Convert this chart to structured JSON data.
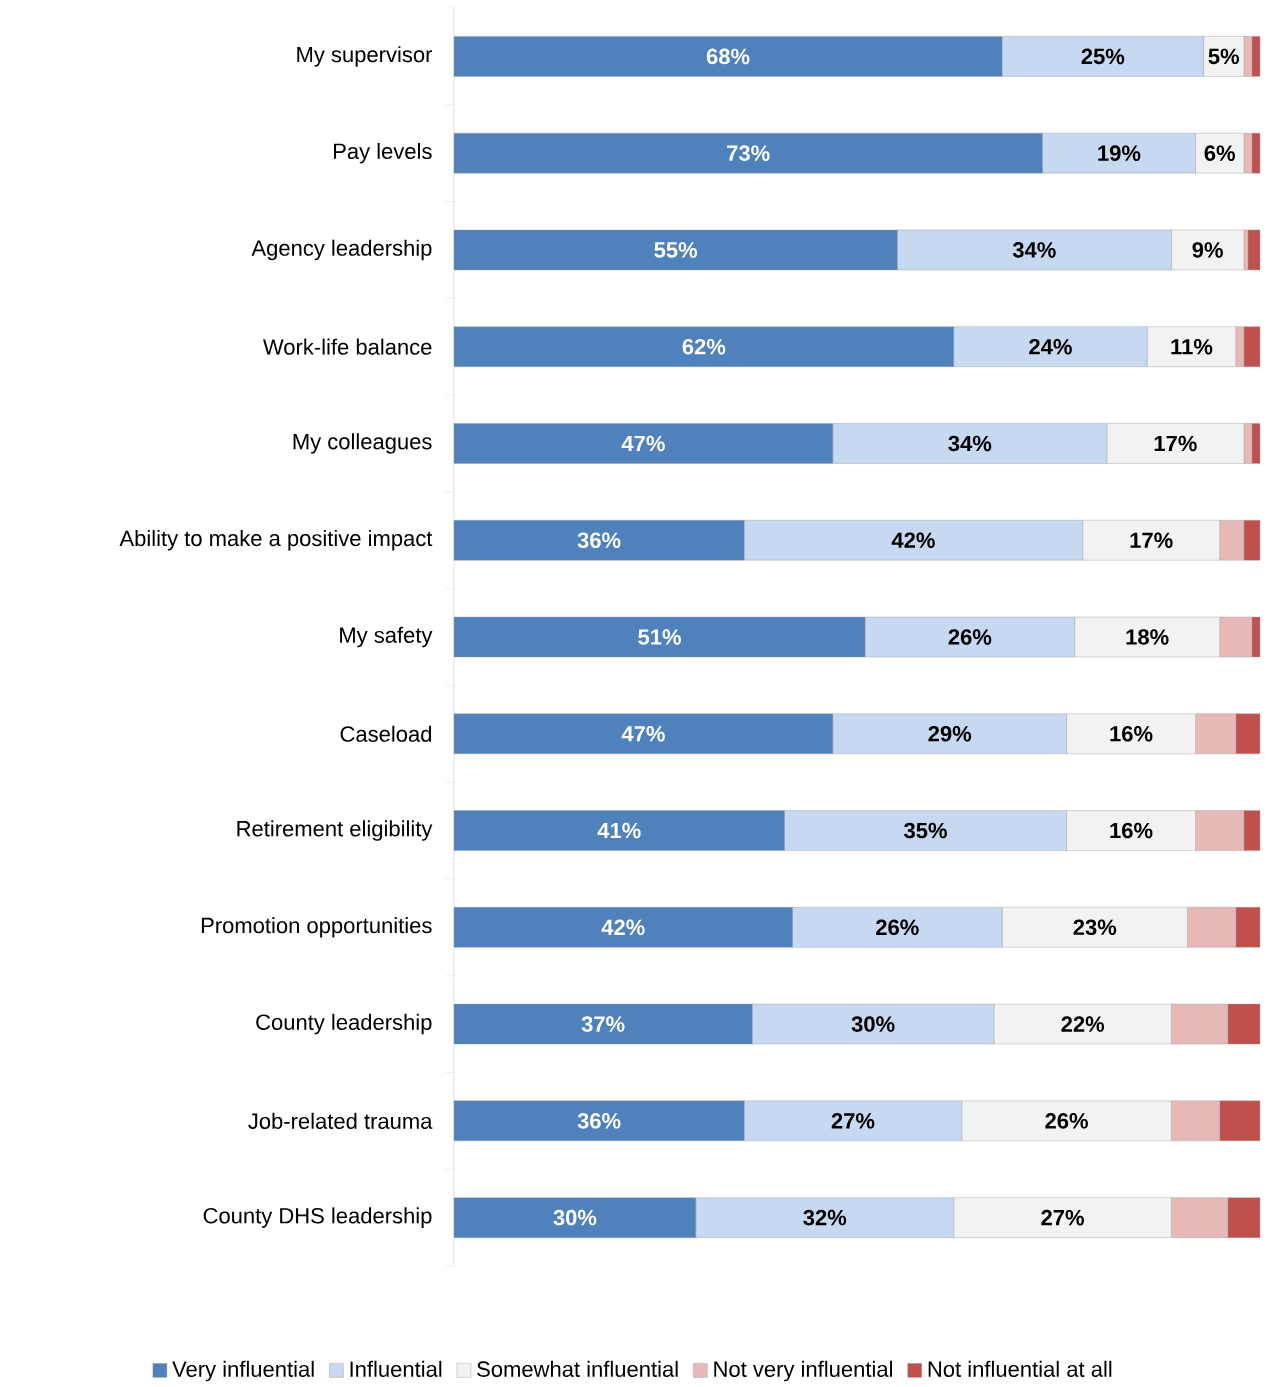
{
  "chart_data": {
    "type": "bar",
    "orientation": "horizontal",
    "stacked": true,
    "legend": "bottom",
    "xlim": [
      0,
      100
    ],
    "categories": [
      "My supervisor",
      "Pay levels",
      "Agency leadership",
      "Work-life balance",
      "My colleagues",
      "Ability to make a positive impact",
      "My safety",
      "Caseload",
      "Retirement eligibility",
      "Promotion opportunities",
      "County leadership",
      "Job-related trauma",
      "County DHS leadership"
    ],
    "series": [
      {
        "name": "Very influential",
        "color": "#4f81bd",
        "values": [
          68,
          73,
          55,
          62,
          47,
          36,
          51,
          47,
          41,
          42,
          37,
          36,
          30
        ],
        "value_labels": [
          "68%",
          "73%",
          "55%",
          "62%",
          "47%",
          "36%",
          "51%",
          "47%",
          "41%",
          "42%",
          "37%",
          "36%",
          "30%"
        ]
      },
      {
        "name": "Influential",
        "color": "#c6d9f1",
        "values": [
          25,
          19,
          34,
          24,
          34,
          42,
          26,
          29,
          35,
          26,
          30,
          27,
          32
        ],
        "value_labels": [
          "25%",
          "19%",
          "34%",
          "24%",
          "34%",
          "42%",
          "26%",
          "29%",
          "35%",
          "26%",
          "30%",
          "27%",
          "32%"
        ]
      },
      {
        "name": "Somewhat influential",
        "color": "#f2f2f2",
        "values": [
          5,
          6,
          9,
          11,
          17,
          17,
          18,
          16,
          16,
          23,
          22,
          26,
          27
        ],
        "value_labels": [
          "5%",
          "6%",
          "9%",
          "11%",
          "17%",
          "17%",
          "18%",
          "16%",
          "16%",
          "23%",
          "22%",
          "26%",
          "27%"
        ]
      },
      {
        "name": "Not very influential",
        "color": "#e6b9b8",
        "values": [
          1,
          1,
          0.5,
          1,
          1,
          3,
          4,
          5,
          6,
          6,
          7,
          6,
          7
        ]
      },
      {
        "name": "Not influential at all",
        "color": "#c0504d",
        "values": [
          1,
          1,
          1.5,
          2,
          1,
          2,
          1,
          3,
          2,
          3,
          4,
          5,
          4
        ]
      }
    ]
  }
}
